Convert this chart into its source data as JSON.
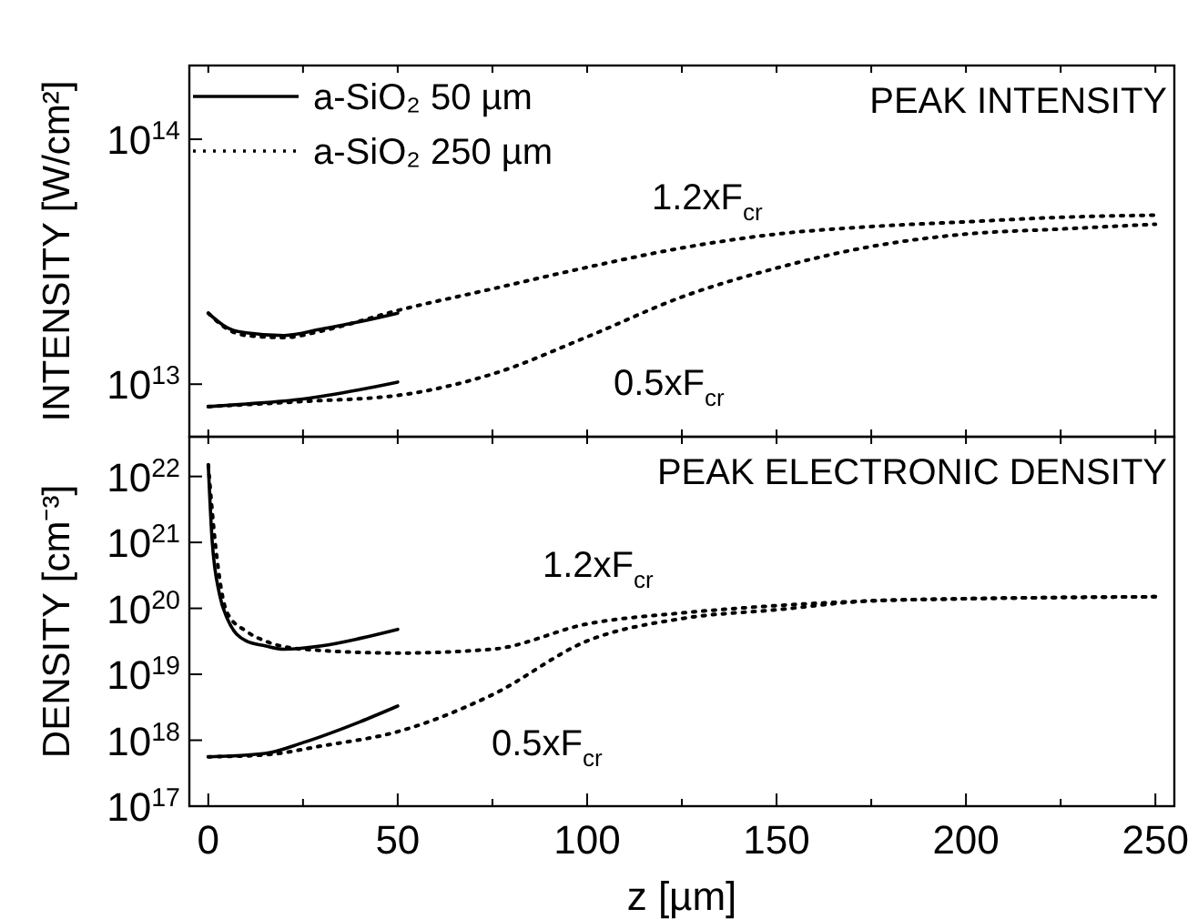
{
  "chart_data": [
    {
      "type": "line",
      "title": "PEAK INTENSITY",
      "ylabel": "INTENSITY [W/cm²]",
      "log": "y",
      "legend": "top left",
      "tick_labels": "y",
      "xlim": [
        -5,
        255
      ],
      "xticks": [
        {
          "value": 0,
          "label": null
        },
        {
          "value": 25,
          "label": null
        },
        {
          "value": 50,
          "label": null
        },
        {
          "value": 75,
          "label": null
        },
        {
          "value": 100,
          "label": null
        },
        {
          "value": 125,
          "label": null
        },
        {
          "value": 150,
          "label": null
        },
        {
          "value": 175,
          "label": null
        },
        {
          "value": 200,
          "label": null
        },
        {
          "value": 225,
          "label": null
        },
        {
          "value": 250,
          "label": null
        }
      ],
      "ylim": [
        6100000000000.0,
        200000000000000.0
      ],
      "yticks": [
        {
          "value": 10000000000000.0,
          "label": "10$^{13}$"
        },
        {
          "value": 100000000000000.0,
          "label": "10$^{14}$"
        }
      ],
      "annotations": [
        "1.2xF$_{cr}$",
        "0.5xF$_{cr}$"
      ],
      "series": [
        {
          "name": "a-SiO₂ 50 µm",
          "color": "#000000",
          "line_style": "solid",
          "x": [
            0,
            5,
            10,
            20,
            30,
            40,
            50
          ],
          "values": [
            19500000000000.0,
            17000000000000.0,
            16200000000000.0,
            15800000000000.0,
            16800000000000.0,
            18000000000000.0,
            19500000000000.0
          ]
        },
        {
          "name": "a-SiO₂ 250 µm",
          "color": "#000000",
          "line_style": "dotted",
          "x": [
            0,
            5,
            10,
            20,
            30,
            50,
            75,
            100,
            125,
            150,
            175,
            200,
            225,
            250
          ],
          "values": [
            19500000000000.0,
            16800000000000.0,
            15800000000000.0,
            15500000000000.0,
            16500000000000.0,
            20000000000000.0,
            24500000000000.0,
            30000000000000.0,
            36000000000000.0,
            41000000000000.0,
            44000000000000.0,
            46000000000000.0,
            48000000000000.0,
            49000000000000.0
          ]
        },
        {
          "color": "#000000",
          "line_style": "solid",
          "x": [
            0,
            10,
            25,
            40,
            50
          ],
          "values": [
            8100000000000.0,
            8300000000000.0,
            8700000000000.0,
            9500000000000.0,
            10200000000000.0
          ]
        },
        {
          "color": "#000000",
          "line_style": "dotted",
          "x": [
            0,
            25,
            50,
            75,
            100,
            125,
            150,
            175,
            200,
            225,
            250
          ],
          "values": [
            8100000000000.0,
            8500000000000.0,
            9000000000000.0,
            11000000000000.0,
            15600000000000.0,
            22700000000000.0,
            29800000000000.0,
            36500000000000.0,
            41000000000000.0,
            43000000000000.0,
            45000000000000.0
          ]
        }
      ]
    },
    {
      "type": "line",
      "title": "PEAK ELECTRONIC DENSITY",
      "ylabel": "DENSITY [cm⁻³]",
      "xlabel": "z [µm]",
      "log": "y",
      "xlim": [
        -5,
        255
      ],
      "xticks": [
        0,
        {
          "value": 25,
          "label": null
        },
        50,
        {
          "value": 75,
          "label": null
        },
        100,
        {
          "value": 125,
          "label": null
        },
        150,
        {
          "value": 175,
          "label": null
        },
        200,
        {
          "value": 225,
          "label": null
        },
        250
      ],
      "ylim": [
        1e+17,
        4e+22
      ],
      "yticks": [
        {
          "value": 1e+17,
          "label": "10$^{17}$"
        },
        {
          "value": 1e+18,
          "label": "10$^{18}$"
        },
        {
          "value": 1e+19,
          "label": "10$^{19}$"
        },
        {
          "value": 1e+20,
          "label": "10$^{20}$"
        },
        {
          "value": 1e+21,
          "label": "10$^{21}$"
        },
        {
          "value": 1e+22,
          "label": "10$^{22}$"
        }
      ],
      "annotations": [
        "1.2xF$_{cr}$",
        "0.5xF$_{cr}$"
      ],
      "series": [
        {
          "color": "#000000",
          "line_style": "solid",
          "x": [
            0,
            1,
            3,
            5,
            10,
            15,
            20,
            30,
            40,
            50
          ],
          "values": [
            1.5e+22,
            1.1e+21,
            1.6e+20,
            7e+19,
            3.2e+19,
            2.7e+19,
            2.4e+19,
            2.7e+19,
            3.5e+19,
            4.8e+19
          ]
        },
        {
          "color": "#000000",
          "line_style": "dotted",
          "x": [
            0,
            2,
            5,
            10,
            15,
            25,
            50,
            75,
            100,
            125,
            150,
            175,
            200,
            250
          ],
          "values": [
            1.5e+22,
            8e+20,
            8.5e+19,
            4.5e+19,
            3.2e+19,
            2.4e+19,
            2.1e+19,
            2.4e+19,
            5.8e+19,
            8.5e+19,
            1.1e+20,
            1.3e+20,
            1.4e+20,
            1.5e+20
          ]
        },
        {
          "color": "#000000",
          "line_style": "solid",
          "x": [
            0,
            15,
            25,
            40,
            50
          ],
          "values": [
            5.6e+17,
            6.3e+17,
            9.2e+17,
            1.9e+18,
            3.3e+18
          ]
        },
        {
          "color": "#000000",
          "line_style": "dotted",
          "x": [
            0,
            15,
            30,
            50,
            75,
            100,
            125,
            150,
            175,
            200,
            250
          ],
          "values": [
            5.6e+17,
            6e+17,
            8.2e+17,
            1.35e+18,
            4.9e+18,
            3.2e+19,
            7e+19,
            9.5e+19,
            1.3e+20,
            1.4e+20,
            1.5e+20
          ]
        }
      ]
    }
  ]
}
